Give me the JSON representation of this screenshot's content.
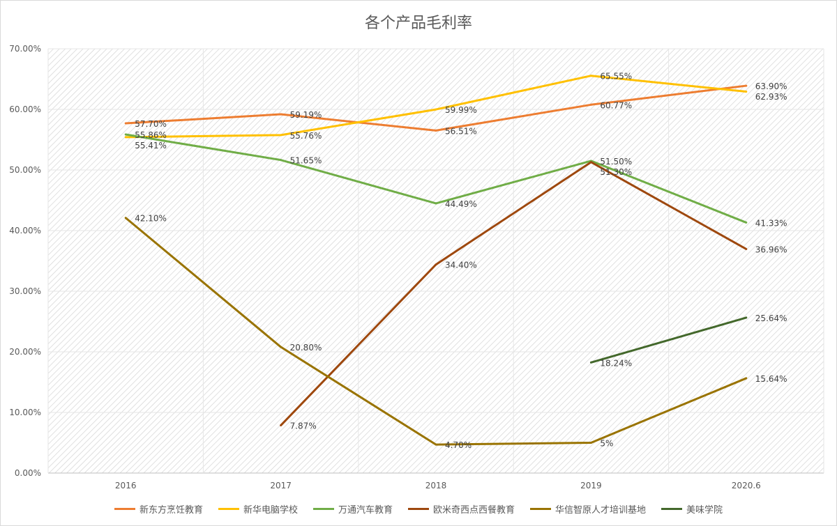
{
  "chart_data": {
    "type": "line",
    "title": "各个产品毛利率",
    "categories": [
      "2016",
      "2017",
      "2018",
      "2019",
      "2020.6"
    ],
    "ylim": [
      0,
      70
    ],
    "yticks": [
      "0.00%",
      "10.00%",
      "20.00%",
      "30.00%",
      "40.00%",
      "50.00%",
      "60.00%",
      "70.00%"
    ],
    "grid": true,
    "legend_position": "bottom",
    "series": [
      {
        "name": "新东方烹饪教育",
        "color": "#ED7D31",
        "values": [
          57.7,
          59.19,
          56.51,
          60.77,
          63.9
        ],
        "labels": [
          "57.70%",
          "59.19%",
          "56.51%",
          "60.77%",
          "63.90%"
        ]
      },
      {
        "name": "新华电脑学校",
        "color": "#FFC000",
        "values": [
          55.41,
          55.76,
          59.99,
          65.55,
          62.93
        ],
        "labels": [
          "55.41%",
          "55.76%",
          "59.99%",
          "65.55%",
          "62.93%"
        ]
      },
      {
        "name": "万通汽车教育",
        "color": "#70AD47",
        "values": [
          55.86,
          51.65,
          44.49,
          51.5,
          41.33
        ],
        "labels": [
          "55.86%",
          "51.65%",
          "44.49%",
          "51.50%",
          "41.33%"
        ]
      },
      {
        "name": "欧米奇西点西餐教育",
        "color": "#9E480E",
        "values": [
          null,
          7.87,
          34.4,
          51.3,
          36.96
        ],
        "labels": [
          null,
          "7.87%",
          "34.40%",
          "51.30%",
          "36.96%"
        ]
      },
      {
        "name": "华信智原人才培训基地",
        "color": "#997300",
        "values": [
          42.1,
          20.8,
          4.7,
          5,
          15.64
        ],
        "labels": [
          "42.10%",
          "20.80%",
          "4.70%",
          "5%",
          "15.64%"
        ]
      },
      {
        "name": "美味学院",
        "color": "#43682B",
        "values": [
          null,
          null,
          null,
          18.24,
          25.64
        ],
        "labels": [
          null,
          null,
          null,
          "18.24%",
          "25.64%"
        ]
      }
    ]
  }
}
